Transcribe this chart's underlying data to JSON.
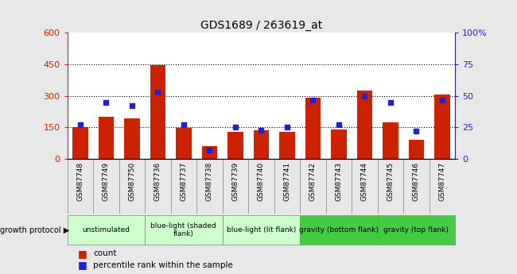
{
  "title": "GDS1689 / 263619_at",
  "samples": [
    "GSM87748",
    "GSM87749",
    "GSM87750",
    "GSM87736",
    "GSM87737",
    "GSM87738",
    "GSM87739",
    "GSM87740",
    "GSM87741",
    "GSM87742",
    "GSM87743",
    "GSM87744",
    "GSM87745",
    "GSM87746",
    "GSM87747"
  ],
  "counts": [
    150,
    200,
    195,
    448,
    148,
    60,
    130,
    135,
    128,
    290,
    140,
    325,
    175,
    90,
    305
  ],
  "percentiles": [
    27,
    45,
    42,
    53,
    27,
    7,
    25,
    23,
    25,
    47,
    27,
    50,
    45,
    22,
    47
  ],
  "ylim_left": [
    0,
    600
  ],
  "ylim_right": [
    0,
    100
  ],
  "yticks_left": [
    0,
    150,
    300,
    450,
    600
  ],
  "yticks_right": [
    0,
    25,
    50,
    75,
    100
  ],
  "bar_color": "#cc2200",
  "dot_color": "#2222cc",
  "bg_color": "#e8e8e8",
  "plot_bg": "#ffffff",
  "tick_bg": "#cccccc",
  "groups": [
    {
      "label": "unstimulated",
      "indices": [
        0,
        1,
        2
      ],
      "color": "#ccffcc"
    },
    {
      "label": "blue-light (shaded\nflank)",
      "indices": [
        3,
        4,
        5
      ],
      "color": "#ccffcc"
    },
    {
      "label": "blue-light (lit flank)",
      "indices": [
        6,
        7,
        8
      ],
      "color": "#ccffcc"
    },
    {
      "label": "gravity (bottom flank)",
      "indices": [
        9,
        10,
        11
      ],
      "color": "#44cc44"
    },
    {
      "label": "gravity (top flank)",
      "indices": [
        12,
        13,
        14
      ],
      "color": "#44cc44"
    }
  ],
  "legend_count_label": "count",
  "legend_pct_label": "percentile rank within the sample",
  "growth_protocol_label": "growth protocol"
}
